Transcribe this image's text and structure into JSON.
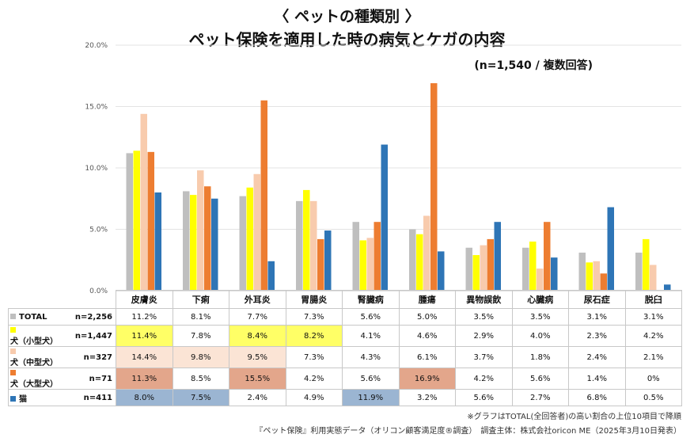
{
  "title_line1": "〈 ペットの種類別 〉",
  "title_line2": "ペット保険を適用した時の病気とケガの内容",
  "subtitle": "(n=1,540 / 複数回答)",
  "note": "※グラフはTOTAL(全回答者)の高い割合の上位10項目で降順",
  "source": "『ペット保険』利用実態データ（オリコン顧客満足度®調査）　調査主体：株式会社oricon ME（2025年3月10日発表）",
  "chart_data": {
    "type": "bar",
    "title": "ペット保険を適用した時の病気とケガの内容",
    "ylabel": "",
    "xlabel": "",
    "ylim": [
      0,
      20
    ],
    "yticks": [
      "0.0%",
      "5.0%",
      "10.0%",
      "15.0%",
      "20.0%"
    ],
    "ytick_values": [
      0,
      5,
      10,
      15,
      20
    ],
    "grid": true,
    "categories": [
      "皮膚炎",
      "下痢",
      "外耳炎",
      "胃腸炎",
      "腎臓病",
      "腫瘍",
      "異物誤飲",
      "心臓病",
      "尿石症",
      "脱臼"
    ],
    "series": [
      {
        "name": "TOTAL",
        "n_label": "n=2,256",
        "color": "#bfbfbf",
        "values": [
          11.2,
          8.1,
          7.7,
          7.3,
          5.6,
          5.0,
          3.5,
          3.5,
          3.1,
          3.1
        ],
        "labels": [
          "11.2%",
          "8.1%",
          "7.7%",
          "7.3%",
          "5.6%",
          "5.0%",
          "3.5%",
          "3.5%",
          "3.1%",
          "3.1%"
        ]
      },
      {
        "name": "犬（小型犬）",
        "n_label": "n=1,447",
        "color": "#ffff00",
        "values": [
          11.4,
          7.8,
          8.4,
          8.2,
          4.1,
          4.6,
          2.9,
          4.0,
          2.3,
          4.2
        ],
        "labels": [
          "11.4%",
          "7.8%",
          "8.4%",
          "8.2%",
          "4.1%",
          "4.6%",
          "2.9%",
          "4.0%",
          "2.3%",
          "4.2%"
        ]
      },
      {
        "name": "犬（中型犬）",
        "n_label": "n=327",
        "color": "#f8cbad",
        "values": [
          14.4,
          9.8,
          9.5,
          7.3,
          4.3,
          6.1,
          3.7,
          1.8,
          2.4,
          2.1
        ],
        "labels": [
          "14.4%",
          "9.8%",
          "9.5%",
          "7.3%",
          "4.3%",
          "6.1%",
          "3.7%",
          "1.8%",
          "2.4%",
          "2.1%"
        ]
      },
      {
        "name": "犬（大型犬）",
        "n_label": "n=71",
        "color": "#ed7d31",
        "values": [
          11.3,
          8.5,
          15.5,
          4.2,
          5.6,
          16.9,
          4.2,
          5.6,
          1.4,
          0
        ],
        "labels": [
          "11.3%",
          "8.5%",
          "15.5%",
          "4.2%",
          "5.6%",
          "16.9%",
          "4.2%",
          "5.6%",
          "1.4%",
          "0%"
        ]
      },
      {
        "name": "猫",
        "n_label": "n=411",
        "color": "#2e75b6",
        "values": [
          8.0,
          7.5,
          2.4,
          4.9,
          11.9,
          3.2,
          5.6,
          2.7,
          6.8,
          0.5
        ],
        "labels": [
          "8.0%",
          "7.5%",
          "2.4%",
          "4.9%",
          "11.9%",
          "3.2%",
          "5.6%",
          "2.7%",
          "6.8%",
          "0.5%"
        ]
      }
    ],
    "highlight_colors": [
      "",
      "#ffff66",
      "#fbe4d5",
      "#e3a68b",
      "#9bb5d2"
    ],
    "highlights": [
      [
        false,
        false,
        false,
        false,
        false,
        false,
        false,
        false,
        false,
        false
      ],
      [
        true,
        false,
        true,
        true,
        false,
        false,
        false,
        false,
        false,
        false
      ],
      [
        true,
        true,
        true,
        false,
        false,
        false,
        false,
        false,
        false,
        false
      ],
      [
        true,
        false,
        true,
        false,
        false,
        true,
        false,
        false,
        false,
        false
      ],
      [
        true,
        true,
        false,
        false,
        true,
        false,
        false,
        false,
        false,
        false
      ]
    ]
  }
}
